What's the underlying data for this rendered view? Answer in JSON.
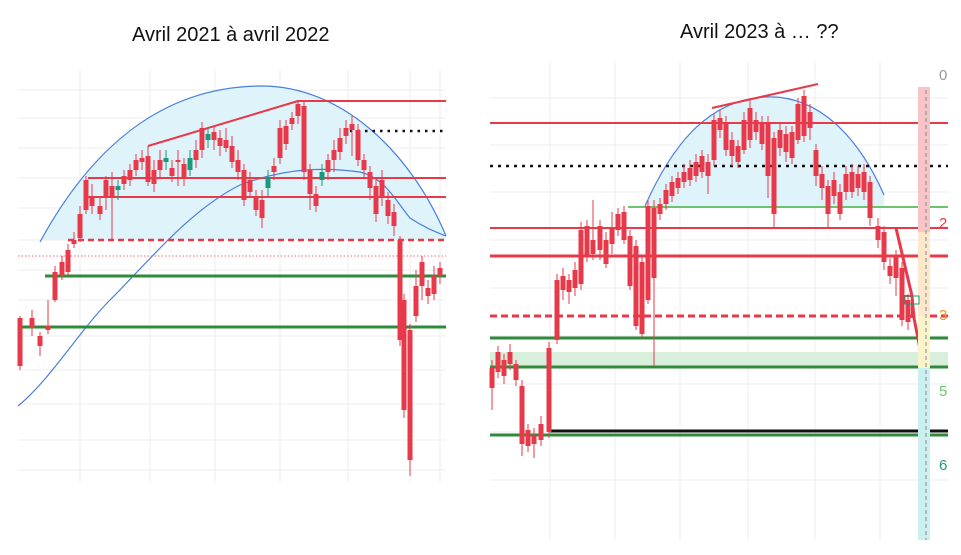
{
  "colors": {
    "up": "#1a9a7a",
    "down": "#e8394a",
    "support": "#2e8b3a",
    "support_light": "#6ec46e",
    "ma": "#4a7fe0",
    "dome_fill": "#dff3fb",
    "band_fill": "#d8efdc",
    "grid": "#eeeeee",
    "black": "#111111"
  },
  "chart_data": [
    {
      "type": "candlestick",
      "title": "Avril 2021 à avril 2022",
      "xlabel": "",
      "ylabel": "",
      "grid": true,
      "overlays": [
        "moving-average",
        "rounded-top-arc",
        "horizontal-levels"
      ]
    },
    {
      "type": "candlestick",
      "title": "Avril 2023 à … ??",
      "xlabel": "",
      "ylabel": "",
      "grid": true,
      "overlays": [
        "rounded-top-arc",
        "horizontal-levels",
        "projected-decline"
      ],
      "scale_labels": [
        "0",
        "2",
        "3",
        "5",
        "6"
      ]
    }
  ]
}
